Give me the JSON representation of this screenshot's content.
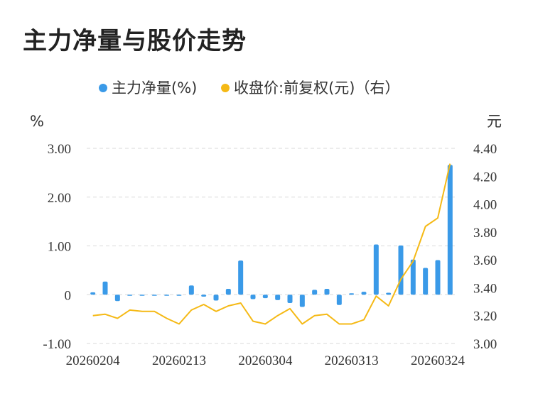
{
  "title": "主力净量与股价走势",
  "colors": {
    "bar": "#3a9ae8",
    "line": "#f5b915",
    "grid": "#d9d9d9",
    "text": "#333333"
  },
  "chart_data": {
    "type": "bar+line",
    "legend": [
      "主力净量(%)",
      "收盘价:前复权(元)（右）"
    ],
    "legend_position": "top-center",
    "left_unit": "%",
    "right_unit": "元",
    "left_axis": {
      "min": -1.0,
      "max": 3.0,
      "ticks": [
        "3.00",
        "2.00",
        "1.00",
        "0",
        "-1.00"
      ],
      "tick_values": [
        3,
        2,
        1,
        0,
        -1
      ]
    },
    "right_axis": {
      "min": 3.0,
      "max": 4.4,
      "ticks": [
        "4.40",
        "4.20",
        "4.00",
        "3.80",
        "3.60",
        "3.40",
        "3.20",
        "3.00"
      ],
      "tick_values": [
        4.4,
        4.2,
        4.0,
        3.8,
        3.6,
        3.4,
        3.2,
        3.0
      ]
    },
    "x_tick_labels": [
      "20260204",
      "20260213",
      "20260304",
      "20260313",
      "20260324"
    ],
    "x_tick_indices": [
      0,
      7,
      14,
      21,
      28
    ],
    "grid": true,
    "series": [
      {
        "name": "主力净量(%)",
        "type": "bar",
        "axis": "left",
        "values": [
          0.05,
          0.27,
          -0.13,
          -0.02,
          -0.02,
          -0.01,
          -0.02,
          -0.01,
          0.19,
          -0.04,
          -0.12,
          0.12,
          0.7,
          -0.09,
          -0.07,
          -0.11,
          -0.17,
          -0.25,
          0.1,
          0.12,
          -0.21,
          0.03,
          0.06,
          1.03,
          0.04,
          1.01,
          0.72,
          0.55,
          0.71,
          2.66
        ]
      },
      {
        "name": "收盘价:前复权(元)（右）",
        "type": "line",
        "axis": "right",
        "values": [
          3.2,
          3.21,
          3.18,
          3.24,
          3.23,
          3.23,
          3.18,
          3.14,
          3.24,
          3.28,
          3.23,
          3.27,
          3.29,
          3.16,
          3.14,
          3.2,
          3.25,
          3.14,
          3.2,
          3.21,
          3.14,
          3.14,
          3.17,
          3.34,
          3.27,
          3.46,
          3.59,
          3.84,
          3.9,
          4.29
        ]
      }
    ]
  }
}
